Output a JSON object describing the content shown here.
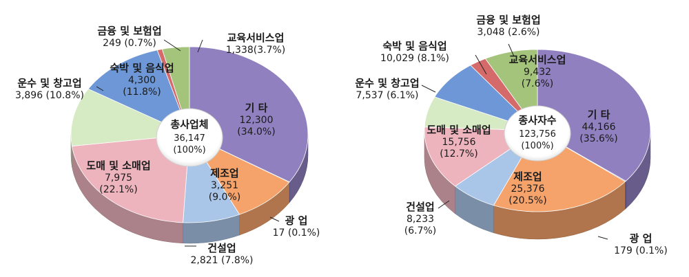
{
  "chart_data": [
    {
      "type": "pie",
      "center_label": {
        "title": "총사업체",
        "value": "36,147",
        "percent": "(100%)"
      },
      "slices": [
        {
          "name": "기 타",
          "value": 12300,
          "value_text": "12,300",
          "percent_text": "(34.0%)",
          "color": "#9080bf"
        },
        {
          "name": "광 업",
          "value": 17,
          "value_text": "17 (0.1%)",
          "percent_text": "",
          "color": "#6f5fa0"
        },
        {
          "name": "제조업",
          "value": 3251,
          "value_text": "3,251",
          "percent_text": "(9.0%)",
          "color": "#f5a36a"
        },
        {
          "name": "건설업",
          "value": 2821,
          "value_text": "2,821 (7.8%)",
          "percent_text": "",
          "color": "#a9c5e8"
        },
        {
          "name": "도매 및 소매업",
          "value": 7975,
          "value_text": "7,975",
          "percent_text": "(22.1%)",
          "color": "#eeb4be"
        },
        {
          "name": "운수 및 창고업",
          "value": 3896,
          "value_text": "3,896 (10.8%)",
          "percent_text": "",
          "color": "#d6eac3"
        },
        {
          "name": "숙박 및 음식업",
          "value": 4300,
          "value_text": "4,300",
          "percent_text": "(11.8%)",
          "color": "#6d97d6"
        },
        {
          "name": "금융 및 보험업",
          "value": 249,
          "value_text": "249 (0.7%)",
          "percent_text": "",
          "color": "#d46a6a"
        },
        {
          "name": "교육서비스업",
          "value": 1338,
          "value_text": "1,338(3.7%)",
          "percent_text": "",
          "color": "#a4c47c"
        }
      ]
    },
    {
      "type": "pie",
      "center_label": {
        "title": "종사자수",
        "value": "123,756",
        "percent": "(100%)"
      },
      "slices": [
        {
          "name": "기 타",
          "value": 44166,
          "value_text": "44,166",
          "percent_text": "(35.6%)",
          "color": "#9080bf"
        },
        {
          "name": "광 업",
          "value": 179,
          "value_text": "179 (0.1%)",
          "percent_text": "",
          "color": "#6f5fa0"
        },
        {
          "name": "제조업",
          "value": 25376,
          "value_text": "25,376",
          "percent_text": "(20.5%)",
          "color": "#f5a36a"
        },
        {
          "name": "건설업",
          "value": 8233,
          "value_text": "8,233",
          "percent_text": "(6.7%)",
          "color": "#a9c5e8"
        },
        {
          "name": "도매 및 소매업",
          "value": 15756,
          "value_text": "15,756",
          "percent_text": "(12.7%)",
          "color": "#eeb4be"
        },
        {
          "name": "운수 및 창고업",
          "value": 7537,
          "value_text": "7,537 (6.1%)",
          "percent_text": "",
          "color": "#d6eac3"
        },
        {
          "name": "숙박 및 음식업",
          "value": 10029,
          "value_text": "10,029 (8.1%)",
          "percent_text": "",
          "color": "#6d97d6"
        },
        {
          "name": "금융 및 보험업",
          "value": 3048,
          "value_text": "3,048 (2.6%)",
          "percent_text": "",
          "color": "#d46a6a"
        },
        {
          "name": "교육서비스업",
          "value": 9432,
          "value_text": "9,432",
          "percent_text": "(7.6%)",
          "color": "#a4c47c"
        }
      ]
    }
  ]
}
